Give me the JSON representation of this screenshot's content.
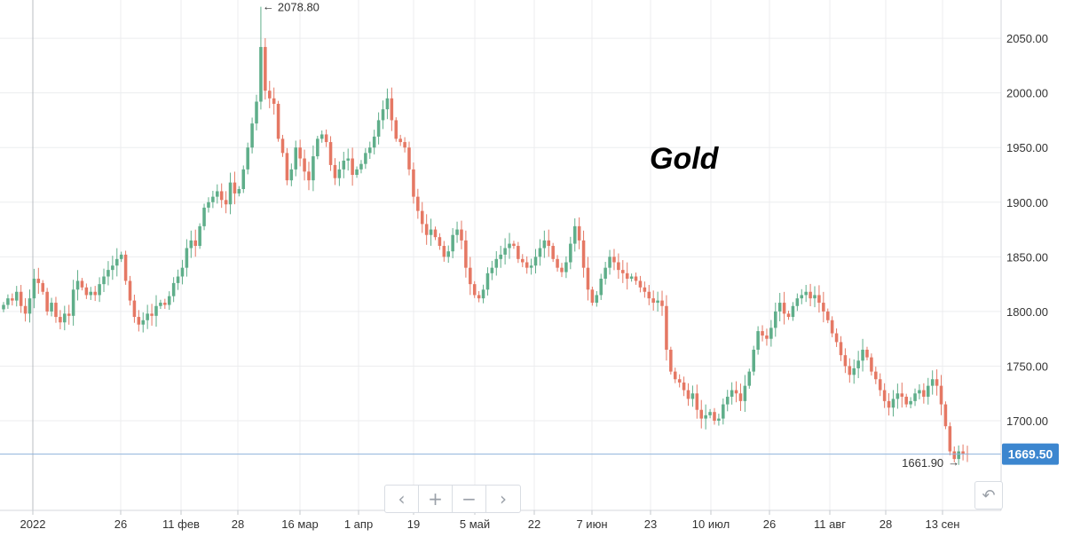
{
  "chart_data": {
    "type": "candlestick",
    "title": "Gold",
    "ylim": [
      1618,
      2085
    ],
    "y_ticks": [
      1700,
      1750,
      1800,
      1850,
      1900,
      1950,
      2000,
      2050
    ],
    "y_tick_labels": [
      "1700.00",
      "1750.00",
      "1800.00",
      "1850.00",
      "1900.00",
      "1950.00",
      "2000.00",
      "2050.00"
    ],
    "x_tick_labels": [
      "2022",
      "26",
      "11 фев",
      "28",
      "16 мар",
      "1 апр",
      "19",
      "5 май",
      "22",
      "7 июн",
      "23",
      "10 июл",
      "26",
      "11 авг",
      "28",
      "13 сен"
    ],
    "grid": true,
    "current_price": 1669.5,
    "current_price_label": "1669.50",
    "annotations": {
      "max_label": "2078.80",
      "max_value": 2078.8,
      "min_label": "1661.90",
      "min_value": 1661.9
    },
    "close": [
      1806,
      1812,
      1810,
      1818,
      1805,
      1798,
      1812,
      1830,
      1826,
      1818,
      1800,
      1808,
      1795,
      1790,
      1798,
      1796,
      1820,
      1828,
      1822,
      1815,
      1818,
      1815,
      1825,
      1832,
      1838,
      1842,
      1848,
      1852,
      1828,
      1810,
      1795,
      1788,
      1792,
      1798,
      1796,
      1805,
      1808,
      1806,
      1814,
      1826,
      1832,
      1840,
      1858,
      1865,
      1860,
      1878,
      1895,
      1900,
      1905,
      1910,
      1902,
      1898,
      1918,
      1908,
      1912,
      1930,
      1950,
      1972,
      1992,
      2042,
      2002,
      1995,
      1990,
      1958,
      1945,
      1920,
      1930,
      1950,
      1940,
      1928,
      1920,
      1942,
      1958,
      1962,
      1955,
      1934,
      1922,
      1930,
      1938,
      1940,
      1925,
      1930,
      1935,
      1945,
      1950,
      1960,
      1975,
      1985,
      1995,
      1975,
      1958,
      1955,
      1950,
      1930,
      1905,
      1892,
      1880,
      1870,
      1875,
      1868,
      1860,
      1850,
      1855,
      1870,
      1875,
      1865,
      1840,
      1825,
      1815,
      1812,
      1820,
      1835,
      1840,
      1848,
      1852,
      1858,
      1862,
      1860,
      1848,
      1845,
      1840,
      1842,
      1850,
      1858,
      1865,
      1860,
      1848,
      1840,
      1836,
      1845,
      1862,
      1878,
      1865,
      1840,
      1820,
      1808,
      1815,
      1830,
      1840,
      1850,
      1845,
      1838,
      1835,
      1830,
      1832,
      1828,
      1822,
      1818,
      1812,
      1808,
      1810,
      1805,
      1765,
      1745,
      1738,
      1735,
      1728,
      1720,
      1725,
      1710,
      1702,
      1705,
      1708,
      1700,
      1702,
      1715,
      1722,
      1728,
      1725,
      1718,
      1732,
      1745,
      1765,
      1782,
      1778,
      1775,
      1785,
      1800,
      1808,
      1798,
      1795,
      1805,
      1812,
      1815,
      1818,
      1812,
      1815,
      1808,
      1800,
      1792,
      1780,
      1772,
      1760,
      1750,
      1742,
      1748,
      1755,
      1765,
      1758,
      1745,
      1738,
      1728,
      1718,
      1712,
      1720,
      1725,
      1722,
      1715,
      1718,
      1725,
      1728,
      1722,
      1732,
      1738,
      1732,
      1715,
      1695,
      1672,
      1665,
      1672,
      1670,
      1669.5
    ]
  },
  "controls": {
    "prev_label": "‹",
    "zoom_in_label": "+",
    "zoom_out_label": "−",
    "next_label": "›",
    "reset_label": "↶"
  },
  "colors": {
    "up": "#5fae8a",
    "down": "#e57864",
    "grid": "#ecedef",
    "price_line": "#8fb3dc",
    "price_badge": "#3c86cf",
    "cursor": "#b8bcc2"
  }
}
